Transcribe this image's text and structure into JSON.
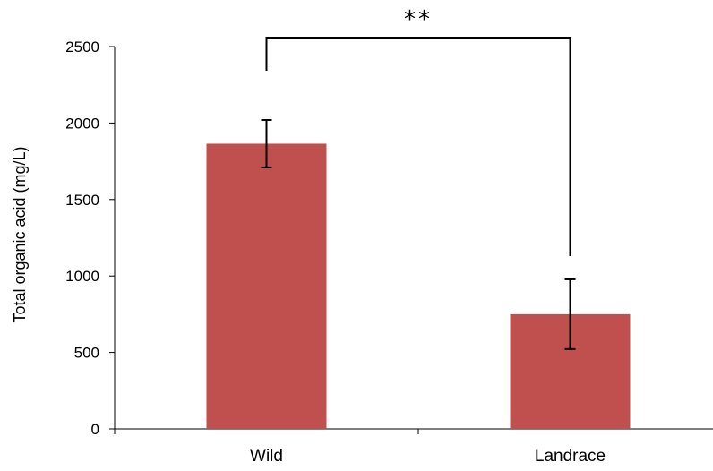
{
  "chart_data": {
    "type": "bar",
    "categories": [
      "Wild",
      "Landrace"
    ],
    "values": [
      1865,
      750
    ],
    "error": [
      155,
      228
    ],
    "ylabel": "Total organic acid (mg/L)",
    "xlabel": "",
    "ylim": [
      0,
      2500
    ],
    "yticks": [
      0,
      500,
      1000,
      1500,
      2000,
      2500
    ],
    "yticklabels": [
      "0",
      "500",
      "1000",
      "1500",
      "2000",
      "2500"
    ],
    "bar_color": "#c0504d",
    "grid": false,
    "legend": "none",
    "annotation": {
      "text": "**",
      "between": [
        "Wild",
        "Landrace"
      ]
    }
  }
}
